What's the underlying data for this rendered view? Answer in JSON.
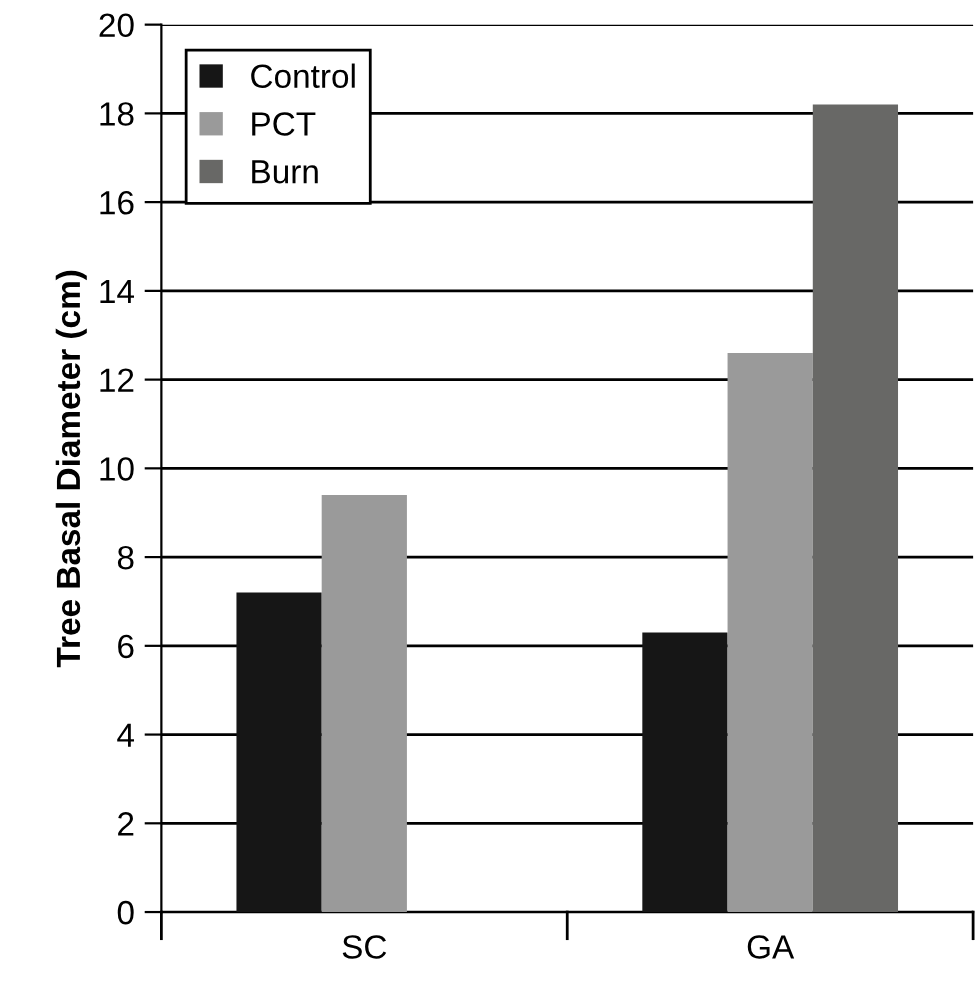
{
  "chart_data": {
    "type": "bar",
    "ylabel": "Tree Basal Diameter (cm)",
    "categories": [
      "SC",
      "GA"
    ],
    "series": [
      {
        "name": "Control",
        "color": "#161616",
        "values": [
          7.2,
          6.3
        ]
      },
      {
        "name": "PCT",
        "color": "#9a9a9a",
        "values": [
          9.4,
          12.6
        ]
      },
      {
        "name": "Burn",
        "color": "#686866",
        "values": [
          null,
          18.2
        ]
      }
    ],
    "ylim": [
      0,
      20
    ],
    "yticks": [
      0,
      2,
      4,
      6,
      8,
      10,
      12,
      14,
      16,
      18,
      20
    ],
    "grid": "y",
    "legend": "top left"
  }
}
